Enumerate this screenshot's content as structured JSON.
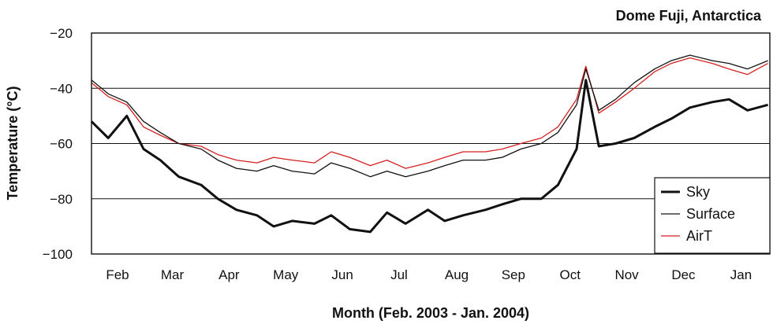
{
  "chart_data": {
    "type": "line",
    "title": "Dome Fuji, Antarctica",
    "xlabel": "Month (Feb. 2003 - Jan. 2004)",
    "ylabel": "Temperature (°C)",
    "ylim": [
      -100,
      -20
    ],
    "yticks": [
      -20,
      -40,
      -60,
      -80,
      -100
    ],
    "grid": "horizontal at -40, -60, -80",
    "legend_position": "bottom-right",
    "months": [
      "Feb",
      "Mar",
      "Apr",
      "May",
      "Jun",
      "Jul",
      "Aug",
      "Sep",
      "Oct",
      "Nov",
      "Dec",
      "Jan"
    ],
    "x": [
      "2003-02-01",
      "2003-02-10",
      "2003-02-20",
      "2003-03-01",
      "2003-03-10",
      "2003-03-20",
      "2003-04-01",
      "2003-04-10",
      "2003-04-20",
      "2003-05-01",
      "2003-05-10",
      "2003-05-20",
      "2003-06-01",
      "2003-06-10",
      "2003-06-20",
      "2003-07-01",
      "2003-07-10",
      "2003-07-20",
      "2003-08-01",
      "2003-08-10",
      "2003-08-20",
      "2003-09-01",
      "2003-09-10",
      "2003-09-20",
      "2003-10-01",
      "2003-10-10",
      "2003-10-20",
      "2003-10-25",
      "2003-11-01",
      "2003-11-10",
      "2003-11-20",
      "2003-12-01",
      "2003-12-10",
      "2003-12-20",
      "2004-01-01",
      "2004-01-10",
      "2004-01-20",
      "2004-01-31"
    ],
    "series": [
      {
        "name": "Sky",
        "color": "#111111",
        "width": 3,
        "values": [
          -52,
          -58,
          -50,
          -62,
          -66,
          -72,
          -75,
          -80,
          -84,
          -86,
          -90,
          -88,
          -89,
          -86,
          -91,
          -92,
          -85,
          -89,
          -84,
          -88,
          -86,
          -84,
          -82,
          -80,
          -80,
          -75,
          -62,
          -37,
          -61,
          -60,
          -58,
          -54,
          -51,
          -47,
          -45,
          -44,
          -48,
          -46
        ]
      },
      {
        "name": "Surface",
        "color": "#111111",
        "width": 1.3,
        "values": [
          -37,
          -42,
          -45,
          -52,
          -56,
          -60,
          -62,
          -66,
          -69,
          -70,
          -68,
          -70,
          -71,
          -67,
          -69,
          -72,
          -70,
          -72,
          -70,
          -68,
          -66,
          -66,
          -65,
          -62,
          -60,
          -56,
          -46,
          -33,
          -48,
          -44,
          -38,
          -33,
          -30,
          -28,
          -30,
          -31,
          -33,
          -30
        ]
      },
      {
        "name": "AirT",
        "color": "#d42020",
        "width": 1.3,
        "values": [
          -38,
          -43,
          -46,
          -54,
          -57,
          -60,
          -61,
          -64,
          -66,
          -67,
          -65,
          -66,
          -67,
          -63,
          -65,
          -68,
          -66,
          -69,
          -67,
          -65,
          -63,
          -63,
          -62,
          -60,
          -58,
          -54,
          -44,
          -32,
          -49,
          -45,
          -40,
          -34,
          -31,
          -29,
          -31,
          -33,
          -35,
          -31
        ]
      }
    ]
  }
}
